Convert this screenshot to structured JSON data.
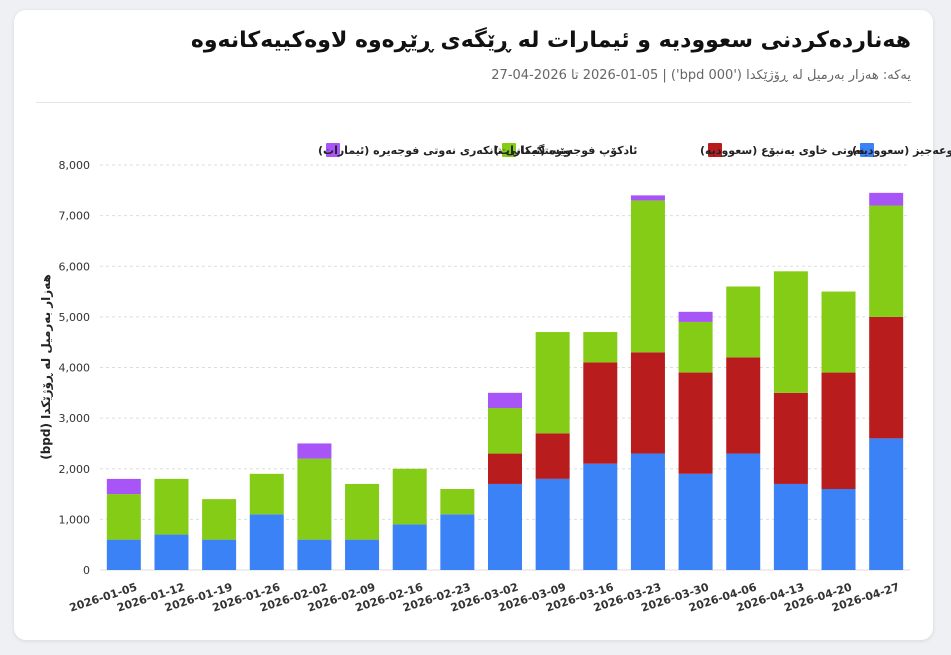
{
  "header": {
    "title": "هەناردەکردنی سعوودیە و ئیمارات لە ڕێگەی ڕێڕەوە لاوەکییەکانەوە",
    "subtitle": "یەکە: هەزار بەرمیل لە ڕۆژێکدا ('000 bpd') | 2026-01-05 تا 2026-04-27"
  },
  "chart_data": {
    "type": "bar",
    "stacked": true,
    "ylabel": "هەزار بەرمیل لە ڕۆژێکدا (bpd)",
    "xlabel": "",
    "ylim": [
      0,
      8000
    ],
    "yticks": [
      0,
      1000,
      2000,
      3000,
      4000,
      5000,
      6000,
      7000,
      8000
    ],
    "ytick_labels": [
      "0",
      "1,000",
      "2,000",
      "3,000",
      "4,000",
      "5,000",
      "6,000",
      "7,000",
      "8,000"
    ],
    "grid": true,
    "legend_position": "top",
    "categories": [
      "2026-01-05",
      "2026-01-12",
      "2026-01-19",
      "2026-01-26",
      "2026-02-02",
      "2026-02-09",
      "2026-02-16",
      "2026-02-23",
      "2026-03-02",
      "2026-03-09",
      "2026-03-16",
      "2026-03-23",
      "2026-03-30",
      "2026-04-06",
      "2026-04-13",
      "2026-04-20",
      "2026-04-27"
    ],
    "series": [
      {
        "name": "موعەجیز (سعوودیە)",
        "color": "#3b82f6",
        "values": [
          600,
          700,
          600,
          1100,
          600,
          600,
          900,
          1100,
          1700,
          1800,
          2100,
          2300,
          1900,
          2300,
          1700,
          1600,
          2600
        ]
      },
      {
        "name": "نەوتی خاوی یەنبۆع (سعوودیە)",
        "color": "#b91c1c",
        "values": [
          0,
          0,
          0,
          0,
          0,
          0,
          0,
          0,
          600,
          900,
          2000,
          2000,
          2000,
          1900,
          1800,
          2300,
          2400
        ]
      },
      {
        "name": "ئادکۆپ فوجەیرە (ئیمارات)",
        "color": "#84cc16",
        "values": [
          900,
          1100,
          800,
          800,
          1600,
          1100,
          1100,
          500,
          900,
          2000,
          600,
          3000,
          1000,
          1400,
          2400,
          1600,
          2200
        ]
      },
      {
        "name": "وێستگەکانی تانکەری نەوتی فوجەیرە (ئیمارات)",
        "color": "#a855f7",
        "values": [
          300,
          0,
          0,
          0,
          300,
          0,
          0,
          0,
          300,
          0,
          0,
          100,
          200,
          0,
          0,
          0,
          250
        ]
      }
    ]
  }
}
